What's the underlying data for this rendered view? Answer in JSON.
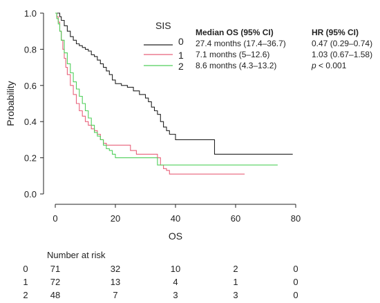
{
  "chart_data": {
    "type": "line",
    "xlabel": "OS",
    "ylabel": "Probability",
    "xlim": [
      0,
      80
    ],
    "ylim": [
      0,
      1.0
    ],
    "x_ticks": [
      "0",
      "20",
      "40",
      "60",
      "80"
    ],
    "y_ticks": [
      "0.0",
      "0.2",
      "0.4",
      "0.6",
      "0.8",
      "1.0"
    ],
    "grid": false,
    "legend_title": "SIS",
    "legend_position": "top-right",
    "table_headers": {
      "median": "Median OS (95% CI)",
      "hr": "HR (95% CI)"
    },
    "series": [
      {
        "name": "0",
        "color": "#222222",
        "median": "27.4 months (17.4–36.7)",
        "hr": "0.47 (0.29–0.74)",
        "hr_italic": false,
        "points": [
          [
            0,
            1.0
          ],
          [
            1,
            1.0
          ],
          [
            1.5,
            0.98
          ],
          [
            2,
            0.96
          ],
          [
            3,
            0.93
          ],
          [
            4,
            0.9
          ],
          [
            5,
            0.87
          ],
          [
            6,
            0.85
          ],
          [
            7,
            0.83
          ],
          [
            8,
            0.82
          ],
          [
            9,
            0.81
          ],
          [
            10,
            0.8
          ],
          [
            11,
            0.79
          ],
          [
            12,
            0.77
          ],
          [
            13,
            0.76
          ],
          [
            14,
            0.74
          ],
          [
            15,
            0.72
          ],
          [
            16,
            0.7
          ],
          [
            17,
            0.68
          ],
          [
            18,
            0.66
          ],
          [
            19,
            0.63
          ],
          [
            20,
            0.61
          ],
          [
            22,
            0.6
          ],
          [
            24,
            0.59
          ],
          [
            26,
            0.57
          ],
          [
            28,
            0.55
          ],
          [
            30,
            0.53
          ],
          [
            31,
            0.51
          ],
          [
            32,
            0.48
          ],
          [
            33,
            0.46
          ],
          [
            34,
            0.44
          ],
          [
            35,
            0.4
          ],
          [
            36,
            0.37
          ],
          [
            37,
            0.35
          ],
          [
            38,
            0.33
          ],
          [
            40,
            0.3
          ],
          [
            46,
            0.3
          ],
          [
            53,
            0.3
          ],
          [
            53,
            0.22
          ],
          [
            79,
            0.22
          ]
        ]
      },
      {
        "name": "1",
        "color": "#e8607a",
        "median": "7.1 months (5–12.6)",
        "hr": "1.03 (0.67–1.58)",
        "hr_italic": false,
        "points": [
          [
            0,
            1.0
          ],
          [
            0.5,
            0.98
          ],
          [
            1,
            0.95
          ],
          [
            1.5,
            0.9
          ],
          [
            2,
            0.85
          ],
          [
            2.5,
            0.8
          ],
          [
            3,
            0.75
          ],
          [
            3.5,
            0.7
          ],
          [
            4,
            0.66
          ],
          [
            5,
            0.6
          ],
          [
            6,
            0.55
          ],
          [
            7,
            0.5
          ],
          [
            8,
            0.46
          ],
          [
            9,
            0.43
          ],
          [
            10,
            0.4
          ],
          [
            11,
            0.38
          ],
          [
            12,
            0.36
          ],
          [
            13,
            0.35
          ],
          [
            14,
            0.33
          ],
          [
            15,
            0.3
          ],
          [
            16,
            0.28
          ],
          [
            17,
            0.27
          ],
          [
            20,
            0.27
          ],
          [
            24,
            0.27
          ],
          [
            25,
            0.24
          ],
          [
            27,
            0.22
          ],
          [
            28,
            0.22
          ],
          [
            33,
            0.22
          ],
          [
            34,
            0.2
          ],
          [
            35,
            0.16
          ],
          [
            36,
            0.14
          ],
          [
            37,
            0.13
          ],
          [
            38,
            0.11
          ],
          [
            63,
            0.11
          ]
        ]
      },
      {
        "name": "2",
        "color": "#4fcf5a",
        "median": "8.6 months (4.3–13.2)",
        "hr": "p < 0.001",
        "hr_italic": true,
        "points": [
          [
            0,
            1.0
          ],
          [
            0.5,
            0.97
          ],
          [
            1,
            0.94
          ],
          [
            1.5,
            0.9
          ],
          [
            2,
            0.85
          ],
          [
            3,
            0.78
          ],
          [
            4,
            0.72
          ],
          [
            5,
            0.67
          ],
          [
            6,
            0.62
          ],
          [
            7,
            0.58
          ],
          [
            8,
            0.54
          ],
          [
            9,
            0.5
          ],
          [
            10,
            0.46
          ],
          [
            11,
            0.42
          ],
          [
            12,
            0.38
          ],
          [
            13,
            0.34
          ],
          [
            14,
            0.32
          ],
          [
            15,
            0.3
          ],
          [
            16,
            0.27
          ],
          [
            17,
            0.25
          ],
          [
            18,
            0.24
          ],
          [
            19,
            0.22
          ],
          [
            20,
            0.2
          ],
          [
            34,
            0.2
          ],
          [
            34,
            0.16
          ],
          [
            74,
            0.16
          ]
        ]
      }
    ],
    "risk_table": {
      "title": "Number at risk",
      "rows": [
        {
          "group": "0",
          "counts": [
            "71",
            "32",
            "10",
            "2",
            "0"
          ]
        },
        {
          "group": "1",
          "counts": [
            "72",
            "13",
            "4",
            "1",
            "0"
          ]
        },
        {
          "group": "2",
          "counts": [
            "48",
            "7",
            "3",
            "3",
            "0"
          ]
        }
      ]
    }
  }
}
